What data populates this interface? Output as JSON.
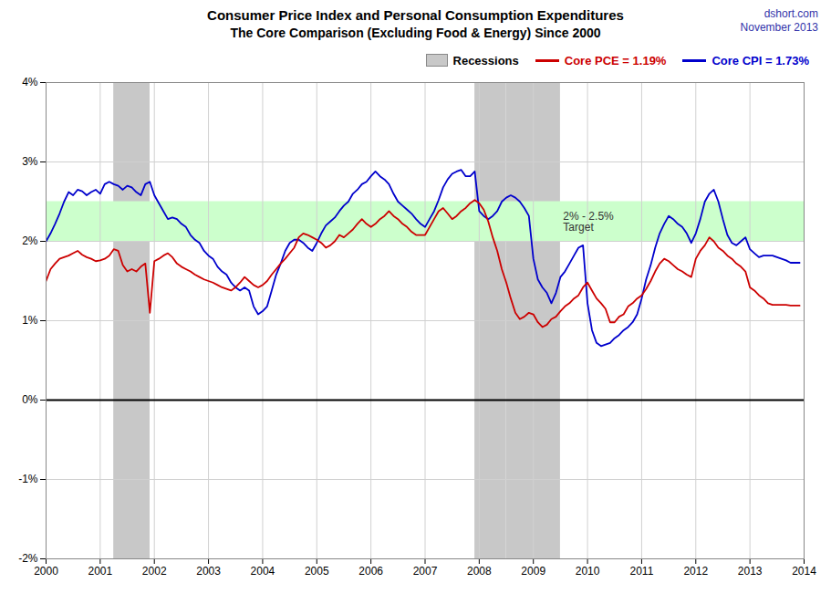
{
  "chart_data": {
    "type": "line",
    "title": "Consumer Price Index and Personal Consumption Expenditures",
    "subtitle": "The Core Comparison (Excluding Food & Energy) Since 2000",
    "annotations": [
      {
        "text": "dshort.com"
      },
      {
        "text": "November 2013"
      },
      {
        "text": "2% - 2.5%\nTarget",
        "x": 2009.55,
        "y": 2.25
      }
    ],
    "x": [
      2000.0,
      2000.083,
      2000.167,
      2000.25,
      2000.333,
      2000.417,
      2000.5,
      2000.583,
      2000.667,
      2000.75,
      2000.833,
      2000.917,
      2001.0,
      2001.083,
      2001.167,
      2001.25,
      2001.333,
      2001.417,
      2001.5,
      2001.583,
      2001.667,
      2001.75,
      2001.833,
      2001.917,
      2002.0,
      2002.083,
      2002.167,
      2002.25,
      2002.333,
      2002.417,
      2002.5,
      2002.583,
      2002.667,
      2002.75,
      2002.833,
      2002.917,
      2003.0,
      2003.083,
      2003.167,
      2003.25,
      2003.333,
      2003.417,
      2003.5,
      2003.583,
      2003.667,
      2003.75,
      2003.833,
      2003.917,
      2004.0,
      2004.083,
      2004.167,
      2004.25,
      2004.333,
      2004.417,
      2004.5,
      2004.583,
      2004.667,
      2004.75,
      2004.833,
      2004.917,
      2005.0,
      2005.083,
      2005.167,
      2005.25,
      2005.333,
      2005.417,
      2005.5,
      2005.583,
      2005.667,
      2005.75,
      2005.833,
      2005.917,
      2006.0,
      2006.083,
      2006.167,
      2006.25,
      2006.333,
      2006.417,
      2006.5,
      2006.583,
      2006.667,
      2006.75,
      2006.833,
      2006.917,
      2007.0,
      2007.083,
      2007.167,
      2007.25,
      2007.333,
      2007.417,
      2007.5,
      2007.583,
      2007.667,
      2007.75,
      2007.833,
      2007.917,
      2008.0,
      2008.083,
      2008.167,
      2008.25,
      2008.333,
      2008.417,
      2008.5,
      2008.583,
      2008.667,
      2008.75,
      2008.833,
      2008.917,
      2009.0,
      2009.083,
      2009.167,
      2009.25,
      2009.333,
      2009.417,
      2009.5,
      2009.583,
      2009.667,
      2009.75,
      2009.833,
      2009.917,
      2010.0,
      2010.083,
      2010.167,
      2010.25,
      2010.333,
      2010.417,
      2010.5,
      2010.583,
      2010.667,
      2010.75,
      2010.833,
      2010.917,
      2011.0,
      2011.083,
      2011.167,
      2011.25,
      2011.333,
      2011.417,
      2011.5,
      2011.583,
      2011.667,
      2011.75,
      2011.833,
      2011.917,
      2012.0,
      2012.083,
      2012.167,
      2012.25,
      2012.333,
      2012.417,
      2012.5,
      2012.583,
      2012.667,
      2012.75,
      2012.833,
      2012.917,
      2013.0,
      2013.083,
      2013.167,
      2013.25,
      2013.333,
      2013.417,
      2013.5,
      2013.583,
      2013.667,
      2013.75,
      2013.917
    ],
    "series": [
      {
        "name": "Core PCE = 1.19%",
        "color": "#cc0000",
        "values": [
          1.5,
          1.65,
          1.72,
          1.78,
          1.8,
          1.82,
          1.85,
          1.88,
          1.83,
          1.8,
          1.78,
          1.75,
          1.76,
          1.78,
          1.82,
          1.9,
          1.88,
          1.7,
          1.62,
          1.65,
          1.62,
          1.68,
          1.72,
          1.1,
          1.75,
          1.78,
          1.82,
          1.85,
          1.8,
          1.72,
          1.68,
          1.65,
          1.62,
          1.58,
          1.55,
          1.52,
          1.5,
          1.48,
          1.45,
          1.42,
          1.4,
          1.38,
          1.42,
          1.48,
          1.55,
          1.5,
          1.45,
          1.42,
          1.45,
          1.5,
          1.58,
          1.65,
          1.72,
          1.78,
          1.85,
          1.92,
          2.05,
          2.1,
          2.08,
          2.05,
          2.02,
          1.98,
          1.92,
          1.95,
          2.0,
          2.08,
          2.05,
          2.1,
          2.15,
          2.22,
          2.28,
          2.22,
          2.18,
          2.22,
          2.28,
          2.32,
          2.38,
          2.32,
          2.28,
          2.22,
          2.18,
          2.12,
          2.08,
          2.08,
          2.08,
          2.18,
          2.28,
          2.38,
          2.42,
          2.35,
          2.28,
          2.32,
          2.38,
          2.42,
          2.48,
          2.52,
          2.48,
          2.4,
          2.25,
          2.05,
          1.88,
          1.65,
          1.48,
          1.28,
          1.1,
          1.02,
          1.05,
          1.1,
          1.08,
          0.98,
          0.92,
          0.95,
          1.02,
          1.05,
          1.12,
          1.18,
          1.22,
          1.28,
          1.32,
          1.42,
          1.48,
          1.38,
          1.28,
          1.22,
          1.15,
          0.98,
          0.98,
          1.05,
          1.08,
          1.18,
          1.22,
          1.28,
          1.32,
          1.4,
          1.5,
          1.62,
          1.72,
          1.78,
          1.75,
          1.7,
          1.65,
          1.62,
          1.58,
          1.55,
          1.78,
          1.88,
          1.95,
          2.05,
          2.0,
          1.92,
          1.88,
          1.82,
          1.78,
          1.72,
          1.68,
          1.62,
          1.42,
          1.38,
          1.32,
          1.28,
          1.22,
          1.2,
          1.2,
          1.2,
          1.2,
          1.19,
          1.19
        ]
      },
      {
        "name": "Core CPI = 1.73%",
        "color": "#0000cc",
        "values": [
          2.0,
          2.1,
          2.22,
          2.35,
          2.5,
          2.62,
          2.58,
          2.65,
          2.63,
          2.58,
          2.62,
          2.65,
          2.6,
          2.72,
          2.75,
          2.72,
          2.7,
          2.65,
          2.7,
          2.68,
          2.62,
          2.58,
          2.72,
          2.75,
          2.58,
          2.48,
          2.38,
          2.28,
          2.3,
          2.28,
          2.22,
          2.18,
          2.08,
          2.02,
          1.98,
          1.88,
          1.82,
          1.78,
          1.68,
          1.62,
          1.58,
          1.48,
          1.42,
          1.38,
          1.42,
          1.38,
          1.18,
          1.08,
          1.12,
          1.18,
          1.38,
          1.58,
          1.72,
          1.88,
          1.98,
          2.02,
          2.02,
          1.98,
          1.92,
          1.88,
          1.98,
          2.1,
          2.2,
          2.25,
          2.3,
          2.38,
          2.45,
          2.5,
          2.6,
          2.65,
          2.72,
          2.75,
          2.82,
          2.88,
          2.82,
          2.78,
          2.72,
          2.6,
          2.5,
          2.45,
          2.4,
          2.35,
          2.28,
          2.22,
          2.18,
          2.28,
          2.38,
          2.52,
          2.68,
          2.78,
          2.85,
          2.88,
          2.9,
          2.82,
          2.82,
          2.88,
          2.38,
          2.32,
          2.28,
          2.32,
          2.38,
          2.5,
          2.55,
          2.58,
          2.55,
          2.5,
          2.42,
          2.32,
          1.78,
          1.52,
          1.42,
          1.35,
          1.22,
          1.35,
          1.55,
          1.62,
          1.72,
          1.82,
          1.92,
          1.95,
          1.22,
          0.88,
          0.72,
          0.68,
          0.7,
          0.72,
          0.78,
          0.82,
          0.88,
          0.92,
          0.98,
          1.08,
          1.28,
          1.52,
          1.7,
          1.92,
          2.1,
          2.22,
          2.32,
          2.28,
          2.22,
          2.18,
          2.1,
          1.98,
          2.1,
          2.28,
          2.5,
          2.6,
          2.65,
          2.5,
          2.28,
          2.08,
          1.98,
          1.95,
          2.0,
          2.05,
          1.9,
          1.85,
          1.8,
          1.82,
          1.82,
          1.82,
          1.8,
          1.78,
          1.76,
          1.73,
          1.73
        ]
      }
    ],
    "xlim": [
      2000.0,
      2014.0
    ],
    "ylim": [
      -2.0,
      4.0
    ],
    "xticks": [
      2000,
      2001,
      2002,
      2003,
      2004,
      2005,
      2006,
      2007,
      2008,
      2009,
      2010,
      2011,
      2012,
      2013,
      2014
    ],
    "yticks": [
      {
        "value": -2,
        "label": "-2%"
      },
      {
        "value": -1,
        "label": "-1%"
      },
      {
        "value": 0,
        "label": "0%"
      },
      {
        "value": 1,
        "label": "1%"
      },
      {
        "value": 2,
        "label": "2%"
      },
      {
        "value": 3,
        "label": "3%"
      },
      {
        "value": 4,
        "label": "4%"
      }
    ],
    "grid": true,
    "legend": "upper right",
    "recession_periods": [
      [
        2001.25,
        2001.92
      ],
      [
        2007.92,
        2008.5
      ],
      [
        2008.5,
        2009.5
      ]
    ],
    "recession_label": "Recessions",
    "recession_color": "#c8c8c8",
    "target_band": [
      2.0,
      2.5
    ],
    "target_band_color": "#ccffcc",
    "reference_lines": [
      {
        "y": 0,
        "color": "#000000"
      }
    ]
  }
}
